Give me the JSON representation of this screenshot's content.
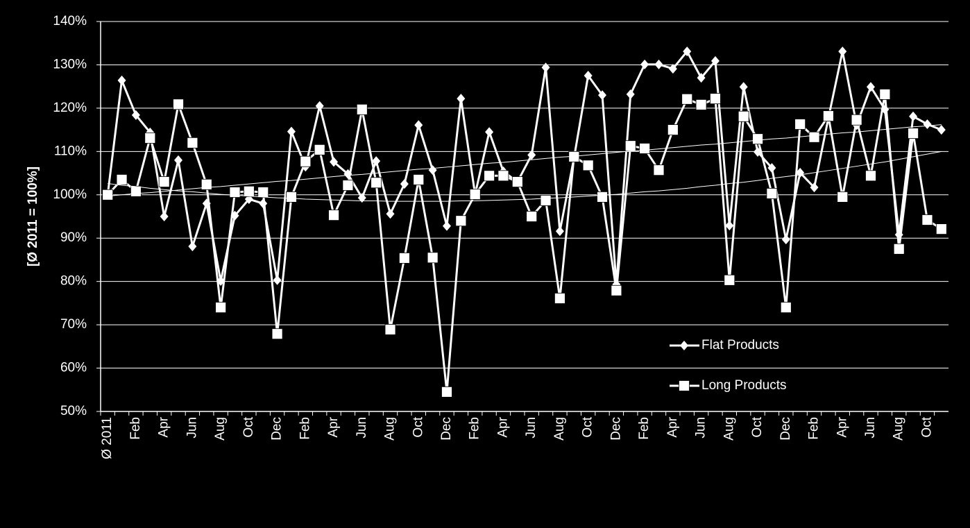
{
  "chart_data": {
    "type": "line",
    "ylabel": "[Ø 2011 = 100%]",
    "categories": [
      "Ø 2011",
      null,
      "Feb",
      null,
      "Apr",
      null,
      "Jun",
      null,
      "Aug",
      null,
      "Oct",
      null,
      "Dec",
      null,
      "Feb",
      null,
      "Apr",
      null,
      "Jun",
      null,
      "Aug",
      null,
      "Oct",
      null,
      "Dec",
      null,
      "Feb",
      null,
      "Apr",
      null,
      "Jun",
      null,
      "Aug",
      null,
      "Oct",
      null,
      "Dec",
      null,
      "Feb",
      null,
      "Apr",
      null,
      "Jun",
      null,
      "Aug",
      null,
      "Oct",
      null,
      "Dec",
      null,
      "Feb",
      null,
      "Apr",
      null,
      "Jun",
      null,
      "Aug",
      null,
      "Oct",
      null
    ],
    "ylim": [
      50,
      140
    ],
    "yticks": [
      {
        "value": 50,
        "label": "50%"
      },
      {
        "value": 60,
        "label": "60%"
      },
      {
        "value": 70,
        "label": "70%"
      },
      {
        "value": 80,
        "label": "80%"
      },
      {
        "value": 90,
        "label": "90%"
      },
      {
        "value": 100,
        "label": "100%"
      },
      {
        "value": 110,
        "label": "110%"
      },
      {
        "value": 120,
        "label": "120%"
      },
      {
        "value": 130,
        "label": "130%"
      },
      {
        "value": 140,
        "label": "140%"
      }
    ],
    "grid": true,
    "series": [
      {
        "name": "Flat Products",
        "color": "#ffffff",
        "marker": "diamond",
        "values": [
          100,
          126.4,
          118.4,
          114.4,
          95,
          108,
          88.1,
          98,
          80.1,
          95.2,
          99,
          98,
          80.3,
          114.6,
          106.5,
          120.5,
          107.6,
          104.8,
          99.3,
          107.8,
          95.6,
          102.5,
          116.1,
          105.7,
          92.8,
          122.2,
          100.1,
          114.5,
          105.4,
          103,
          109.2,
          129.4,
          91.6,
          108.5,
          127.5,
          123,
          79.3,
          123.2,
          130.1,
          130.1,
          129.1,
          133.1,
          127,
          130.9,
          92.9,
          124.9,
          109.9,
          106.2,
          89.7,
          105.1,
          101.7,
          117.7,
          133.1,
          116.1,
          124.9,
          119.7,
          90.8,
          118.1,
          116.3,
          115
        ]
      },
      {
        "name": "Long Products",
        "color": "#ffffff",
        "marker": "square",
        "values": [
          100,
          103.5,
          100.8,
          113.1,
          103,
          120.9,
          112,
          102.4,
          74,
          100.6,
          100.8,
          100.6,
          67.9,
          99.5,
          107.7,
          110.4,
          95.3,
          102.2,
          119.7,
          102.8,
          68.9,
          85.4,
          103.5,
          85.5,
          54.5,
          94,
          100.1,
          104.4,
          104.4,
          103,
          95,
          98.7,
          76.1,
          108.8,
          106.8,
          99.5,
          77.9,
          111.3,
          110.7,
          105.7,
          115,
          122.1,
          120.8,
          122.2,
          80.3,
          118.1,
          112.9,
          100.3,
          74,
          116.3,
          113.3,
          118.2,
          99.5,
          117.3,
          104.4,
          123.2,
          87.5,
          114.2,
          94.2,
          92.1
        ]
      },
      {
        "color": "#ffffff",
        "marker": "none",
        "values": [
          99.7,
          100.0,
          100.3,
          100.5,
          100.8,
          101.1,
          101.4,
          101.7,
          101.9,
          102.2,
          102.5,
          102.8,
          103.1,
          103.3,
          103.6,
          103.9,
          104.2,
          104.5,
          104.7,
          105.0,
          105.3,
          105.6,
          105.9,
          106.1,
          106.4,
          106.7,
          107.0,
          107.3,
          107.5,
          107.8,
          108.1,
          108.4,
          108.7,
          108.9,
          109.2,
          109.5,
          109.8,
          110.1,
          110.3,
          110.6,
          110.9,
          111.2,
          111.5,
          111.7,
          112.0,
          112.3,
          112.6,
          112.9,
          113.1,
          113.4,
          113.7,
          114.0,
          114.3,
          114.5,
          114.8,
          115.1,
          115.4,
          115.7,
          115.9,
          116.2
        ]
      },
      {
        "color": "#ffffff",
        "marker": "none",
        "values": [
          102.6,
          102.2,
          101.9,
          101.5,
          101.2,
          100.9,
          100.7,
          100.4,
          100.1,
          99.9,
          99.7,
          99.5,
          99.3,
          99.2,
          99.0,
          98.9,
          98.8,
          98.7,
          98.6,
          98.6,
          98.5,
          98.5,
          98.5,
          98.5,
          98.5,
          98.6,
          98.6,
          98.7,
          98.8,
          98.9,
          99.0,
          99.2,
          99.3,
          99.5,
          99.7,
          99.9,
          100.1,
          100.4,
          100.7,
          100.9,
          101.2,
          101.5,
          101.9,
          102.2,
          102.6,
          102.9,
          103.3,
          103.8,
          104.2,
          104.6,
          105.1,
          105.6,
          106.1,
          106.6,
          107.1,
          107.6,
          108.2,
          108.8,
          109.4,
          110.0
        ]
      }
    ]
  }
}
